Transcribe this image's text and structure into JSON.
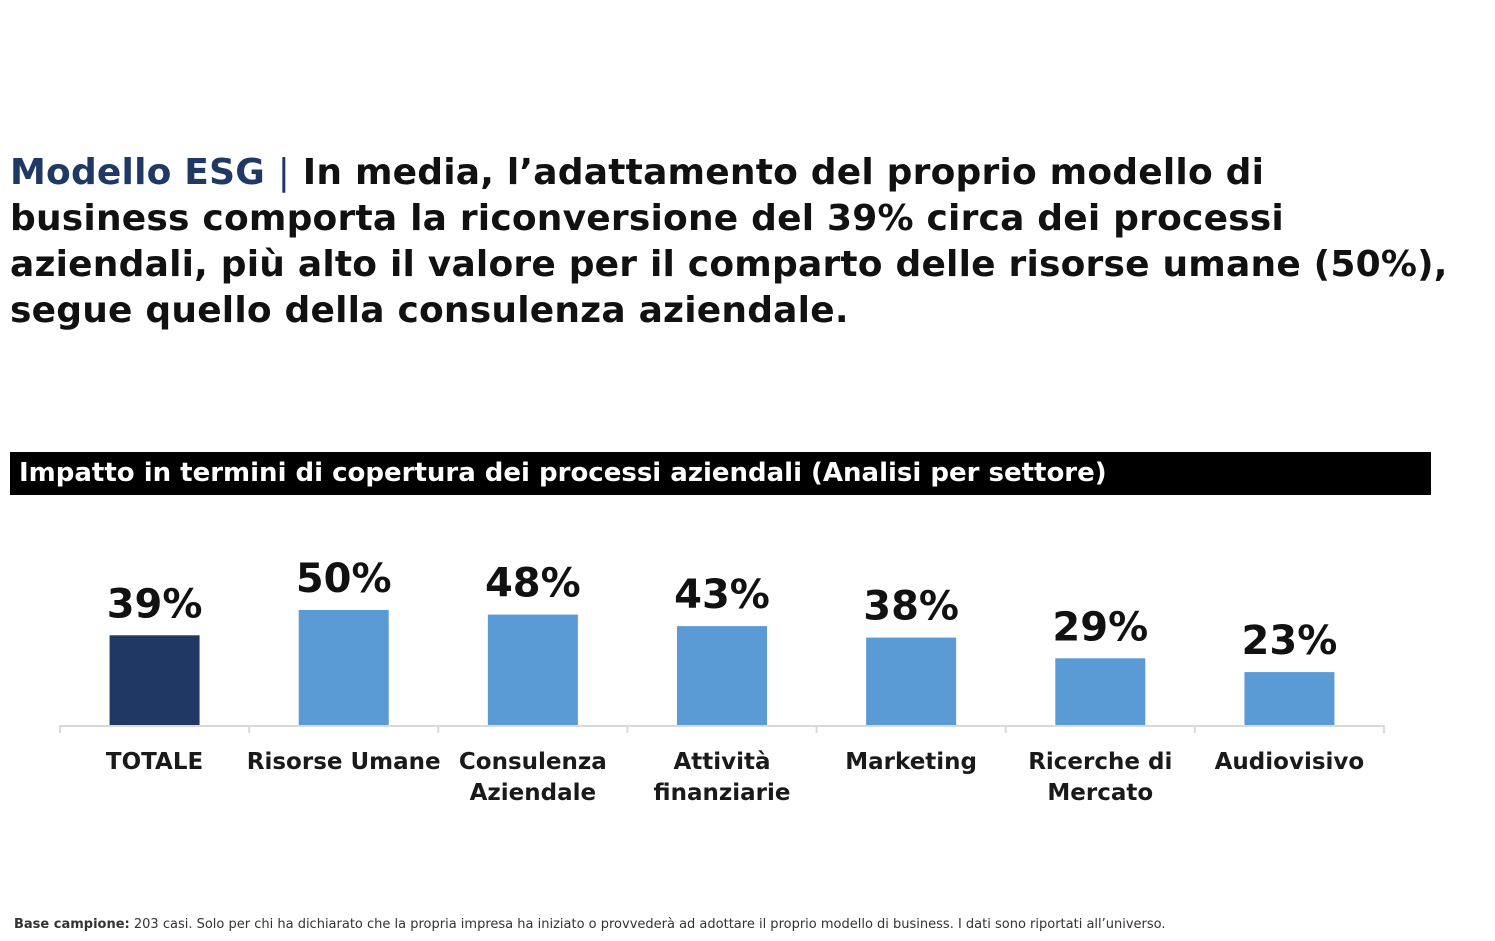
{
  "headline": {
    "brand": "Modello ESG",
    "separator": "|",
    "text": "In media, l’adattamento del proprio modello di business comporta la riconversione del 39% circa dei processi aziendali, più alto il valore per il comparto delle risorse umane (50%), segue quello della consulenza aziendale."
  },
  "banner": {
    "text": "Impatto in termini di copertura dei processi aziendali (Analisi per settore)"
  },
  "chart_data": {
    "type": "bar",
    "title": "Impatto in termini di copertura dei processi aziendali (Analisi per settore)",
    "categories": [
      "TOTALE",
      "Risorse Umane",
      "Consulenza Aziendale",
      "Attività finanziarie",
      "Marketing",
      "Ricerche di Mercato",
      "Audiovisivo"
    ],
    "category_lines": [
      [
        "TOTALE"
      ],
      [
        "Risorse Umane"
      ],
      [
        "Consulenza",
        "Aziendale"
      ],
      [
        "Attività",
        "finanziarie"
      ],
      [
        "Marketing"
      ],
      [
        "Ricerche di",
        "Mercato"
      ],
      [
        "Audiovisivo"
      ]
    ],
    "values": [
      39,
      50,
      48,
      43,
      38,
      29,
      23
    ],
    "value_labels": [
      "39%",
      "50%",
      "48%",
      "43%",
      "38%",
      "29%",
      "23%"
    ],
    "unit": "%",
    "ylim": [
      0,
      50
    ],
    "grid": false,
    "colors": [
      "#1f3864",
      "#5b9bd5",
      "#5b9bd5",
      "#5b9bd5",
      "#5b9bd5",
      "#5b9bd5",
      "#5b9bd5"
    ]
  },
  "footnote": {
    "label": "Base campione:",
    "text": " 203 casi. Solo per chi ha dichiarato che la propria impresa ha iniziato o provvederà ad adottare il proprio modello di business. I dati sono riportati all’universo."
  }
}
